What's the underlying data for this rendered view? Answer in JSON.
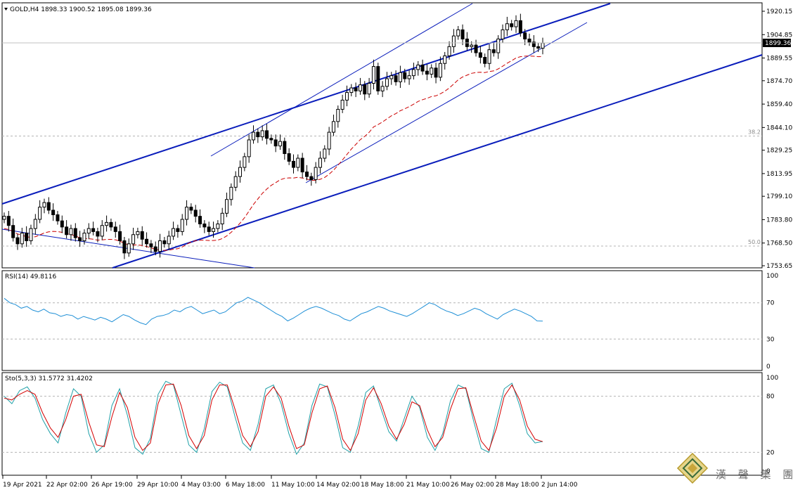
{
  "symbol_info": {
    "header": "GOLD,H4  1898.33 1900.52 1895.08 1899.36",
    "current_price": "1899.36"
  },
  "price_axis": {
    "ticks": [
      "1920.15",
      "1904.85",
      "1889.55",
      "1874.70",
      "1859.40",
      "1844.10",
      "1829.25",
      "1813.95",
      "1799.10",
      "1783.80",
      "1768.50",
      "1753.65"
    ],
    "tick_values": [
      1920.15,
      1904.85,
      1889.55,
      1874.7,
      1859.4,
      1844.1,
      1829.25,
      1813.95,
      1799.1,
      1783.8,
      1768.5,
      1753.65
    ]
  },
  "time_axis": {
    "labels": [
      "19 Apr 2021",
      "22 Apr 02:00",
      "26 Apr 19:00",
      "29 Apr 10:00",
      "4 May 03:00",
      "6 May 18:00",
      "11 May 10:00",
      "14 May 02:00",
      "18 May 18:00",
      "21 May 10:00",
      "26 May 02:00",
      "28 May 18:00",
      "2 Jun 14:00"
    ]
  },
  "fibonacci": {
    "levels": [
      {
        "label": "38.2",
        "price": 1838.5
      },
      {
        "label": "50.0",
        "price": 1766.5
      }
    ]
  },
  "rsi": {
    "header": "RSI(14) 49.8116",
    "levels": [
      "100",
      "70",
      "30",
      "0"
    ],
    "level_values": [
      100,
      70,
      30,
      0
    ]
  },
  "stochastic": {
    "header": "Sto(5,3,3) 31.5772 31.4202",
    "levels": [
      "100",
      "80",
      "20",
      "0"
    ],
    "level_values": [
      100,
      80,
      20,
      0
    ]
  },
  "watermark": {
    "text": "漢 聲 集 團"
  },
  "colors": {
    "up_candle": "#000000",
    "down_candle": "#000000",
    "ma_line": "#cc0000",
    "channel_line": "#0a1dbb",
    "rsi_line": "#1e8fd6",
    "sto_main": "#1fa0a8",
    "sto_signal": "#d40000",
    "grid_dash": "#b4b4b4"
  },
  "chart_data": {
    "type": "candlestick",
    "symbol": "GOLD",
    "timeframe": "H4",
    "title": "GOLD,H4",
    "xlabel": "",
    "ylabel": "",
    "ylim": [
      1753.65,
      1920.15
    ],
    "close_series": [
      1786,
      1780,
      1772,
      1768,
      1775,
      1770,
      1778,
      1784,
      1792,
      1795,
      1790,
      1787,
      1783,
      1779,
      1774,
      1778,
      1772,
      1770,
      1775,
      1778,
      1776,
      1773,
      1780,
      1782,
      1779,
      1776,
      1770,
      1762,
      1768,
      1774,
      1776,
      1771,
      1768,
      1766,
      1763,
      1770,
      1768,
      1773,
      1778,
      1776,
      1784,
      1792,
      1790,
      1786,
      1781,
      1779,
      1776,
      1778,
      1781,
      1788,
      1797,
      1805,
      1812,
      1818,
      1825,
      1836,
      1841,
      1838,
      1842,
      1837,
      1836,
      1832,
      1835,
      1827,
      1822,
      1818,
      1824,
      1815,
      1812,
      1810,
      1818,
      1824,
      1830,
      1841,
      1848,
      1856,
      1862,
      1867,
      1870,
      1868,
      1872,
      1866,
      1873,
      1884,
      1868,
      1871,
      1876,
      1878,
      1874,
      1880,
      1876,
      1878,
      1882,
      1885,
      1881,
      1879,
      1883,
      1877,
      1886,
      1891,
      1897,
      1904,
      1908,
      1902,
      1897,
      1898,
      1893,
      1890,
      1886,
      1895,
      1893,
      1902,
      1908,
      1912,
      1910,
      1914,
      1906,
      1902,
      1900,
      1897,
      1896,
      1899.36
    ],
    "moving_average": {
      "name": "",
      "start_value": 1757,
      "end_value": 1891
    },
    "channels": [
      {
        "from": {
          "date": "19 Apr 2021",
          "price": 1784
        },
        "to": {
          "date": "2 Jun 14:00",
          "price": 1888
        }
      },
      {
        "from": {
          "date": "26 Apr 19:00",
          "price": 1753
        },
        "to": {
          "date": "2 Jun 14:00",
          "price": 1886
        }
      }
    ],
    "rsi_series": [
      75,
      70,
      68,
      64,
      66,
      62,
      60,
      63,
      59,
      58,
      55,
      57,
      56,
      52,
      55,
      53,
      51,
      54,
      52,
      49,
      53,
      57,
      55,
      51,
      48,
      46,
      52,
      55,
      56,
      58,
      62,
      60,
      64,
      66,
      62,
      58,
      60,
      62,
      58,
      60,
      65,
      70,
      72,
      76,
      73,
      70,
      66,
      62,
      58,
      55,
      50,
      53,
      57,
      61,
      64,
      66,
      64,
      61,
      58,
      56,
      52,
      50,
      54,
      58,
      60,
      63,
      66,
      64,
      61,
      59,
      57,
      55,
      58,
      62,
      66,
      70,
      68,
      64,
      61,
      59,
      56,
      58,
      61,
      64,
      62,
      58,
      55,
      52,
      57,
      60,
      63,
      61,
      58,
      55,
      50,
      49.81
    ],
    "stochastic_main": [
      80,
      72,
      86,
      90,
      78,
      55,
      40,
      30,
      62,
      88,
      80,
      40,
      20,
      28,
      70,
      88,
      60,
      25,
      18,
      35,
      82,
      96,
      92,
      60,
      28,
      20,
      45,
      85,
      95,
      90,
      58,
      30,
      22,
      50,
      88,
      92,
      72,
      40,
      18,
      30,
      70,
      93,
      90,
      60,
      25,
      20,
      48,
      84,
      91,
      66,
      42,
      32,
      56,
      80,
      68,
      36,
      22,
      40,
      75,
      92,
      88,
      54,
      24,
      20,
      55,
      88,
      94,
      70,
      40,
      30,
      31.58
    ],
    "stochastic_signal": [
      78,
      76,
      82,
      86,
      82,
      62,
      46,
      36,
      55,
      80,
      82,
      52,
      28,
      26,
      58,
      84,
      68,
      36,
      22,
      30,
      72,
      92,
      93,
      70,
      38,
      24,
      38,
      76,
      92,
      92,
      66,
      38,
      26,
      42,
      80,
      90,
      78,
      48,
      24,
      28,
      62,
      88,
      91,
      68,
      34,
      22,
      40,
      76,
      89,
      72,
      48,
      34,
      50,
      74,
      70,
      44,
      26,
      36,
      66,
      88,
      89,
      60,
      32,
      22,
      46,
      80,
      92,
      76,
      48,
      34,
      31.42
    ]
  }
}
